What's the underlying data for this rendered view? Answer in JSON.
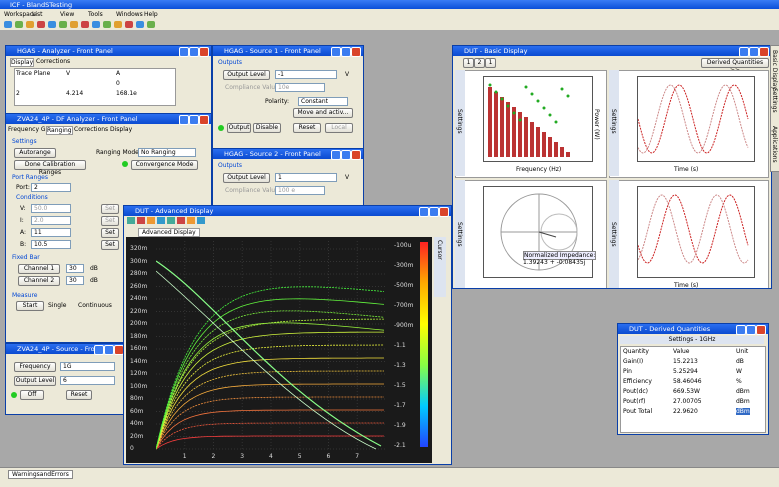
{
  "app": {
    "title": "ICF - BlandSTesting",
    "menu": [
      "Workspace",
      "List",
      "View",
      "Tools",
      "Windows",
      "Help"
    ]
  },
  "analyzer": {
    "title": "HGAS - Analyzer - Front Panel",
    "tabs": [
      "Display",
      "Corrections"
    ],
    "header": [
      "Trace Plane",
      "V",
      "A"
    ],
    "rows": [
      [
        "",
        "",
        "0"
      ],
      [
        "2",
        "4.214",
        "168.1e"
      ]
    ]
  },
  "df": {
    "title": "ZVA24_4P - DF Analyzer - Front Panel",
    "tabs": [
      "Frequency Grid",
      "Ranging",
      "Corrections",
      "Display"
    ],
    "settings": "Settings",
    "autorange": "Autorange",
    "ranging_mode_label": "Ranging Mode:",
    "ranging_mode": "No Ranging",
    "done_calibration": "Done Calibration Ranges",
    "convergence_mode": "Convergence Mode",
    "port_ranges": "Port Ranges",
    "port_label": "Port:",
    "port": "2",
    "conditions": "Conditions",
    "rows": [
      {
        "label": "V:",
        "value": "50.0"
      },
      {
        "label": "I:",
        "value": "2.0"
      },
      {
        "label": "A:",
        "value": "11"
      },
      {
        "label": "B:",
        "value": "10.5"
      }
    ],
    "set": "Set",
    "fixed_bar": "Fixed Bar",
    "channels": [
      {
        "name": "Channel 1",
        "value": "30",
        "unit": "dB"
      },
      {
        "name": "Channel 2",
        "value": "30",
        "unit": "dB"
      }
    ],
    "measure": "Measure",
    "start": "Start",
    "single": "Single",
    "continuous": "Continuous"
  },
  "source1": {
    "title": "HGAG - Source 1 - Front Panel",
    "outputs": "Outputs",
    "output_level": "Output Level",
    "level": "-1",
    "unit": "V",
    "compliance_label": "Compliance Value",
    "compliance": "10e",
    "polarity_label": "Polarity:",
    "polarity": "Constant",
    "move": "Move and activ...",
    "output": "Output",
    "disable": "Disable",
    "reset": "Reset",
    "local": "Local"
  },
  "source2": {
    "title": "HGAG - Source 2 - Front Panel",
    "outputs": "Outputs",
    "output_level": "Output Level",
    "level": "1",
    "unit": "V",
    "compliance_label": "Compliance Value",
    "compliance": "100 e"
  },
  "basic": {
    "title": "DUT - Basic Display",
    "nav": [
      "1",
      "2",
      "1"
    ],
    "derived": "Derived Quantities >>",
    "side": "Settings",
    "freq_label": "Frequency (Hz)",
    "power_label": "Power (W)",
    "time_label": "Time (s)",
    "impedance": "Normalized Impedance:",
    "impedance_value": "1.39243 + -0.08435j"
  },
  "advanced": {
    "title": "DUT - Advanced Display",
    "tab": "Advanced Display",
    "cursor": "Cursor",
    "yticks": [
      "320m",
      "300m",
      "280m",
      "260m",
      "240m",
      "220m",
      "200m",
      "180m",
      "160m",
      "140m",
      "120m",
      "100m",
      "80m",
      "60m",
      "40m",
      "20m",
      "0"
    ],
    "cticks": [
      "-100u",
      "-300m",
      "-500m",
      "-700m",
      "-900m",
      "-1.1",
      "-1.3",
      "-1.5",
      "-1.7",
      "-1.9",
      "-2.1"
    ],
    "xticks": [
      "1",
      "2",
      "3",
      "4",
      "5",
      "6",
      "7"
    ]
  },
  "source": {
    "title": "ZVA24_4P - Source - Front P...",
    "frequency_label": "Frequency",
    "frequency": "1G",
    "output_level_label": "Output Level",
    "output_level": "6",
    "off": "Off",
    "reset": "Reset"
  },
  "derived": {
    "title": "DUT - Derived Quantities",
    "settings": "Settings - 1GHz",
    "header": [
      "Quantity",
      "Value",
      "Unit"
    ],
    "rows": [
      [
        "Gain(I)",
        "15.2213",
        "dB"
      ],
      [
        "Pin",
        "5.25294",
        "W"
      ],
      [
        "Efficiency",
        "58.46046",
        "%"
      ],
      [
        "Pout(dc)",
        "669.53W",
        "dBm"
      ],
      [
        "Pout(rf)",
        "27.00705",
        "dBm"
      ],
      [
        "Pout Total",
        "22.9620",
        "dBm"
      ]
    ]
  },
  "side_tabs": [
    "Basic Display",
    "Settings",
    "Applications"
  ],
  "status": {
    "tab": "WarningsandErrors"
  }
}
